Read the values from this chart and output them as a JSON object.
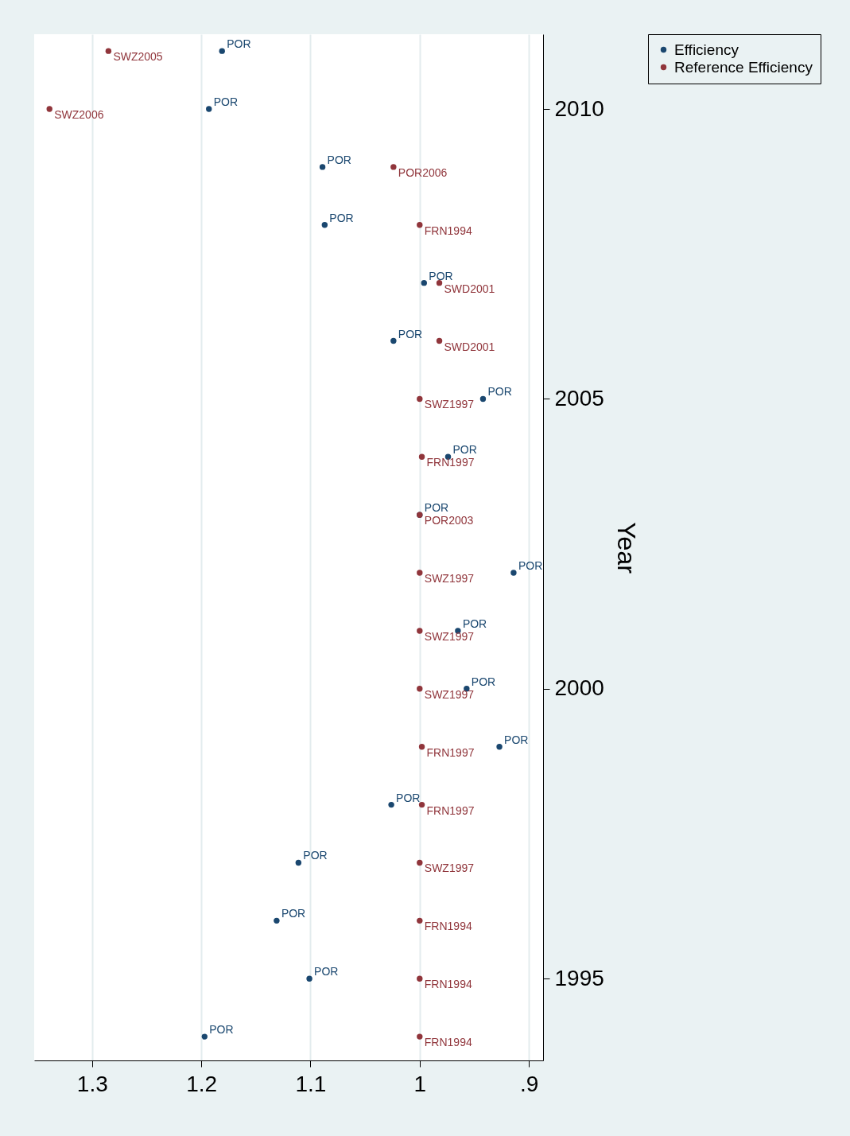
{
  "chart_data": {
    "type": "scatter",
    "ylabel": "Year",
    "series": [
      {
        "name": "Efficiency",
        "color": "#1a476f",
        "x": [
          1.197,
          1.101,
          1.131,
          1.111,
          1.026,
          0.927,
          0.957,
          0.965,
          0.914,
          1.0,
          0.974,
          0.942,
          1.024,
          0.996,
          1.087,
          1.089,
          1.193,
          1.181
        ],
        "values": [
          1994,
          1995,
          1996,
          1997,
          1998,
          1999,
          2000,
          2001,
          2002,
          2003,
          2004,
          2005,
          2006,
          2007,
          2008,
          2009,
          2010,
          2011
        ],
        "value_labels": [
          "POR",
          "POR",
          "POR",
          "POR",
          "POR",
          "POR",
          "POR",
          "POR",
          "POR",
          "POR",
          "POR",
          "POR",
          "POR",
          "POR",
          "POR",
          "POR",
          "POR",
          "POR"
        ]
      },
      {
        "name": "Reference Efficiency",
        "color": "#90353b",
        "x": [
          1.0,
          1.0,
          1.0,
          1.0,
          0.998,
          0.998,
          1.0,
          1.0,
          1.0,
          1.0,
          0.998,
          1.0,
          0.982,
          0.982,
          1.0,
          1.024,
          1.339,
          1.285
        ],
        "values": [
          1994,
          1995,
          1996,
          1997,
          1998,
          1999,
          2000,
          2001,
          2002,
          2003,
          2004,
          2005,
          2006,
          2007,
          2008,
          2009,
          2010,
          2011
        ],
        "value_labels": [
          "FRN1994",
          "FRN1994",
          "FRN1994",
          "SWZ1997",
          "FRN1997",
          "FRN1997",
          "SWZ1997",
          "SWZ1997",
          "SWZ1997",
          "POR2003",
          "FRN1997",
          "SWZ1997",
          "SWD2001",
          "SWD2001",
          "FRN1994",
          "POR2006",
          "SWZ2006",
          "SWZ2005"
        ]
      }
    ],
    "xlim": [
      1.353,
      0.887
    ],
    "xticks": [
      1.3,
      1.2,
      1.1,
      1,
      {
        "value": 0.9,
        "label": ".9"
      }
    ],
    "ylim": [
      1993.59,
      2011.29
    ],
    "yticks": [
      1995,
      2000,
      2005,
      2010
    ],
    "grid": "x",
    "legend": "right",
    "marker": "circle"
  }
}
